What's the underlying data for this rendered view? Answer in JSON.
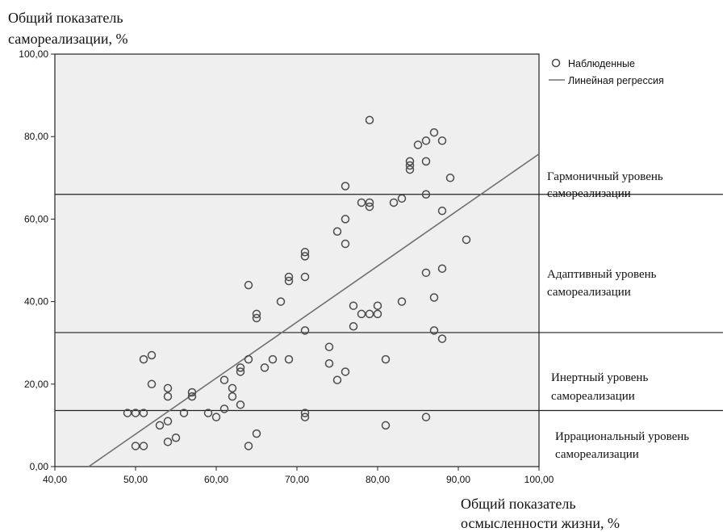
{
  "chart_data": {
    "type": "scatter",
    "title": "",
    "ylabel": [
      "Общий показатель",
      "самореализации, %"
    ],
    "xlabel": [
      "Общий показатель",
      "осмысленности жизни, %"
    ],
    "xlim": [
      40,
      100
    ],
    "ylim": [
      0,
      100
    ],
    "x_ticks": [
      "40,00",
      "50,00",
      "60,00",
      "70,00",
      "80,00",
      "90,00",
      "100,00"
    ],
    "y_ticks": [
      "0,00",
      "20,00",
      "40,00",
      "60,00",
      "80,00",
      "100,00"
    ],
    "legend": {
      "position": "top-right",
      "observed": "Наблюденные",
      "regression": "Линейная регрессия"
    },
    "series": [
      {
        "name": "Наблюденные",
        "points": [
          [
            49,
            13
          ],
          [
            50,
            13
          ],
          [
            50,
            5
          ],
          [
            51,
            13
          ],
          [
            51,
            5
          ],
          [
            51,
            26
          ],
          [
            52,
            27
          ],
          [
            52,
            20
          ],
          [
            53,
            10
          ],
          [
            54,
            19
          ],
          [
            54,
            17
          ],
          [
            54,
            11
          ],
          [
            54,
            6
          ],
          [
            55,
            7
          ],
          [
            56,
            13
          ],
          [
            57,
            18
          ],
          [
            57,
            17
          ],
          [
            59,
            13
          ],
          [
            60,
            12
          ],
          [
            61,
            21
          ],
          [
            61,
            14
          ],
          [
            62,
            19
          ],
          [
            62,
            17
          ],
          [
            63,
            24
          ],
          [
            63,
            23
          ],
          [
            63,
            15
          ],
          [
            64,
            44
          ],
          [
            64,
            26
          ],
          [
            64,
            5
          ],
          [
            65,
            37
          ],
          [
            65,
            36
          ],
          [
            65,
            8
          ],
          [
            66,
            24
          ],
          [
            67,
            26
          ],
          [
            68,
            40
          ],
          [
            69,
            46
          ],
          [
            69,
            45
          ],
          [
            69,
            26
          ],
          [
            71,
            52
          ],
          [
            71,
            51
          ],
          [
            71,
            46
          ],
          [
            71,
            33
          ],
          [
            71,
            13
          ],
          [
            71,
            12
          ],
          [
            74,
            29
          ],
          [
            74,
            25
          ],
          [
            75,
            57
          ],
          [
            75,
            21
          ],
          [
            76,
            68
          ],
          [
            76,
            60
          ],
          [
            76,
            54
          ],
          [
            76,
            23
          ],
          [
            77,
            39
          ],
          [
            77,
            34
          ],
          [
            78,
            64
          ],
          [
            78,
            37
          ],
          [
            79,
            84
          ],
          [
            79,
            64
          ],
          [
            79,
            63
          ],
          [
            79,
            37
          ],
          [
            80,
            39
          ],
          [
            80,
            37
          ],
          [
            81,
            26
          ],
          [
            81,
            10
          ],
          [
            82,
            64
          ],
          [
            83,
            65
          ],
          [
            83,
            40
          ],
          [
            84,
            74
          ],
          [
            84,
            73
          ],
          [
            84,
            72
          ],
          [
            85,
            78
          ],
          [
            86,
            79
          ],
          [
            86,
            74
          ],
          [
            86,
            66
          ],
          [
            86,
            47
          ],
          [
            86,
            12
          ],
          [
            87,
            81
          ],
          [
            87,
            41
          ],
          [
            87,
            33
          ],
          [
            88,
            79
          ],
          [
            88,
            62
          ],
          [
            88,
            48
          ],
          [
            88,
            31
          ],
          [
            89,
            70
          ],
          [
            91,
            55
          ]
        ]
      },
      {
        "name": "Линейная регрессия",
        "line": [
          [
            44.2,
            0
          ],
          [
            102,
            78.5
          ]
        ]
      }
    ],
    "reference_lines": [
      {
        "y": 66,
        "label": [
          "Гармоничный уровень",
          "самореализации"
        ]
      },
      {
        "y": 32.5,
        "label": [
          "Адаптивный уровень",
          "самореализации"
        ]
      },
      {
        "y": 13.6,
        "label": [
          "Инертный уровень",
          "самореализации"
        ]
      },
      {
        "y": null,
        "label": [
          "Иррациональный уровень",
          "самореализации"
        ]
      }
    ],
    "colors": {
      "plot_bg": "#efefef",
      "marker": "#4a4a4a",
      "regression": "#707070",
      "reference": "#222222"
    }
  }
}
